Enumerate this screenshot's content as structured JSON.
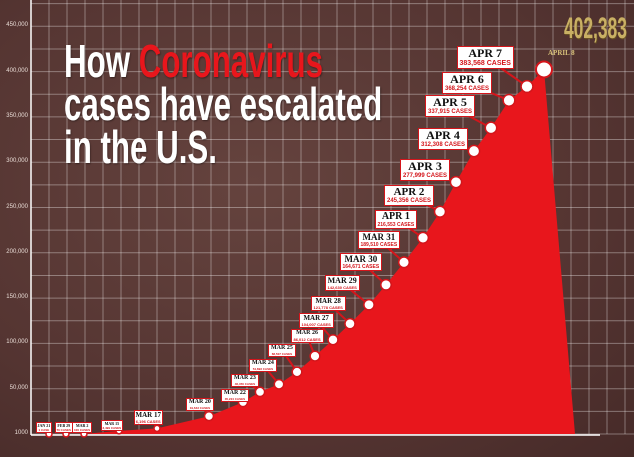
{
  "title": {
    "part1": "How ",
    "highlight": "Coronavirus",
    "line2": "cases have escalated",
    "line3": "in the U.S."
  },
  "headline_total": "402,383",
  "headline_date": "APRIL 8",
  "colors": {
    "background": "#583834",
    "area": "#e8161c",
    "title_highlight": "#e8161c",
    "total": "#c9b064"
  },
  "chart_data": {
    "type": "area",
    "title": "How Coronavirus cases have escalated in the U.S.",
    "xlabel": "",
    "ylabel": "",
    "y_ticks": [
      "1000",
      "50,000",
      "100,000",
      "150,000",
      "200,000",
      "250,000",
      "300,000",
      "350,000",
      "400,000",
      "450,000"
    ],
    "ylim": [
      0,
      450000
    ],
    "grid": true,
    "points": [
      {
        "date": "JAN 21",
        "cases": 1,
        "label": "1 CASE"
      },
      {
        "date": "FEB 29",
        "cases": 70,
        "label": "70 CASES"
      },
      {
        "date": "MAR 2",
        "cases": 100,
        "label": "100 CASES"
      },
      {
        "date": "MAR 15",
        "cases": 3499,
        "label": "3,499 CASES"
      },
      {
        "date": "MAR 17",
        "cases": 6196,
        "label": "6,196 CASES"
      },
      {
        "date": "MAR 20",
        "cases": 19643,
        "label": "19,643 CASES"
      },
      {
        "date": "MAR 22",
        "cases": 35224,
        "label": "35,224 CASES"
      },
      {
        "date": "MAR 23",
        "cases": 46450,
        "label": "46,450 CASES"
      },
      {
        "date": "MAR 24",
        "cases": 54893,
        "label": "54,893 CASES"
      },
      {
        "date": "MAR 25",
        "cases": 68507,
        "label": "68,507 CASES"
      },
      {
        "date": "MAR 26",
        "cases": 86012,
        "label": "86,012 CASES"
      },
      {
        "date": "MAR 27",
        "cases": 104007,
        "label": "104,007 CASES"
      },
      {
        "date": "MAR 28",
        "cases": 121778,
        "label": "121,778 CASES"
      },
      {
        "date": "MAR 29",
        "cases": 142630,
        "label": "142,630 CASES"
      },
      {
        "date": "MAR 30",
        "cases": 164671,
        "label": "164,671 CASES"
      },
      {
        "date": "MAR 31",
        "cases": 189510,
        "label": "189,510 CASES"
      },
      {
        "date": "APR 1",
        "cases": 216553,
        "label": "216,553 CASES"
      },
      {
        "date": "APR 2",
        "cases": 245356,
        "label": "245,356 CASES"
      },
      {
        "date": "APR 3",
        "cases": 277999,
        "label": "277,999 CASES"
      },
      {
        "date": "APR 4",
        "cases": 312308,
        "label": "312,308 CASES"
      },
      {
        "date": "APR 5",
        "cases": 337915,
        "label": "337,915 CASES"
      },
      {
        "date": "APR 6",
        "cases": 368254,
        "label": "368,254 CASES"
      },
      {
        "date": "APR 7",
        "cases": 383568,
        "label": "383,568 CASES"
      },
      {
        "date": "APRIL 8",
        "cases": 402383,
        "label": "402,383"
      }
    ]
  }
}
